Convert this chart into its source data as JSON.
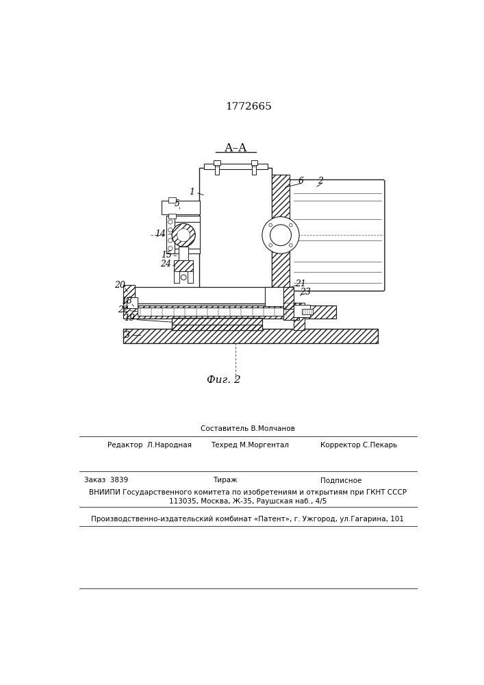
{
  "patent_number": "1772665",
  "fig_label": "Фиг. 2",
  "section_label": "А–А",
  "line_color": "#1a1a1a",
  "editor_line": "Редактор  Л.Народная",
  "composer_line": "Составитель В.Молчанов",
  "techred_line": "Техред М.Моргентал",
  "corrector_line": "Корректор С.Пекарь",
  "order_line": "Заказ  3839",
  "tirazh_line": "Тираж",
  "podpisnoe_line": "Подписное",
  "vniip_line": "ВНИИПИ Государственного комитета по изобретениям и открытиям при ГКНТ СССР",
  "address_line": "113035, Москва, Ж-35, Раушская наб., 4/5",
  "publisher_line": "Производственно-издательский комбинат «Патент», г. Ужгород, ул.Гагарина, 101"
}
